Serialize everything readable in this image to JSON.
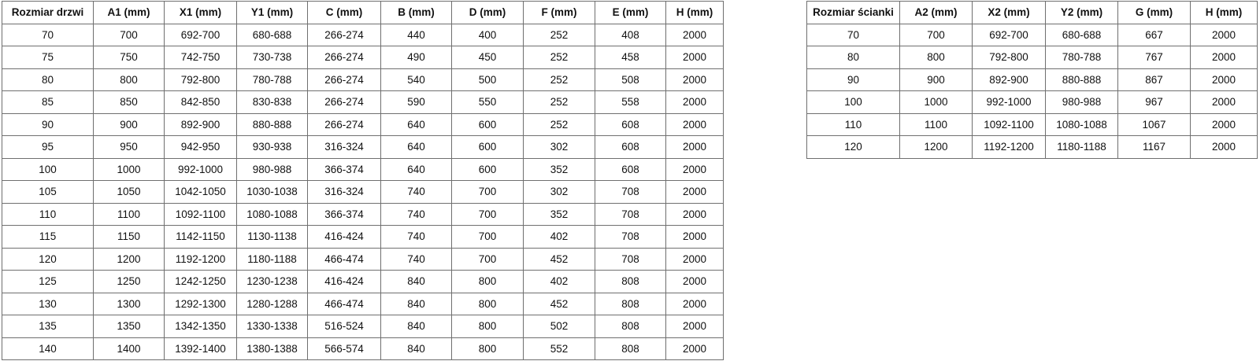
{
  "colors": {
    "table_border": "#6f6f6f",
    "text": "#111111",
    "background": "#ffffff"
  },
  "door_table": {
    "headers": [
      "Rozmiar drzwi",
      "A1 (mm)",
      "X1 (mm)",
      "Y1 (mm)",
      "C (mm)",
      "B (mm)",
      "D (mm)",
      "F (mm)",
      "E (mm)",
      "H (mm)"
    ],
    "rows": [
      [
        "70",
        "700",
        "692-700",
        "680-688",
        "266-274",
        "440",
        "400",
        "252",
        "408",
        "2000"
      ],
      [
        "75",
        "750",
        "742-750",
        "730-738",
        "266-274",
        "490",
        "450",
        "252",
        "458",
        "2000"
      ],
      [
        "80",
        "800",
        "792-800",
        "780-788",
        "266-274",
        "540",
        "500",
        "252",
        "508",
        "2000"
      ],
      [
        "85",
        "850",
        "842-850",
        "830-838",
        "266-274",
        "590",
        "550",
        "252",
        "558",
        "2000"
      ],
      [
        "90",
        "900",
        "892-900",
        "880-888",
        "266-274",
        "640",
        "600",
        "252",
        "608",
        "2000"
      ],
      [
        "95",
        "950",
        "942-950",
        "930-938",
        "316-324",
        "640",
        "600",
        "302",
        "608",
        "2000"
      ],
      [
        "100",
        "1000",
        "992-1000",
        "980-988",
        "366-374",
        "640",
        "600",
        "352",
        "608",
        "2000"
      ],
      [
        "105",
        "1050",
        "1042-1050",
        "1030-1038",
        "316-324",
        "740",
        "700",
        "302",
        "708",
        "2000"
      ],
      [
        "110",
        "1100",
        "1092-1100",
        "1080-1088",
        "366-374",
        "740",
        "700",
        "352",
        "708",
        "2000"
      ],
      [
        "115",
        "1150",
        "1142-1150",
        "1130-1138",
        "416-424",
        "740",
        "700",
        "402",
        "708",
        "2000"
      ],
      [
        "120",
        "1200",
        "1192-1200",
        "1180-1188",
        "466-474",
        "740",
        "700",
        "452",
        "708",
        "2000"
      ],
      [
        "125",
        "1250",
        "1242-1250",
        "1230-1238",
        "416-424",
        "840",
        "800",
        "402",
        "808",
        "2000"
      ],
      [
        "130",
        "1300",
        "1292-1300",
        "1280-1288",
        "466-474",
        "840",
        "800",
        "452",
        "808",
        "2000"
      ],
      [
        "135",
        "1350",
        "1342-1350",
        "1330-1338",
        "516-524",
        "840",
        "800",
        "502",
        "808",
        "2000"
      ],
      [
        "140",
        "1400",
        "1392-1400",
        "1380-1388",
        "566-574",
        "840",
        "800",
        "552",
        "808",
        "2000"
      ]
    ]
  },
  "wall_table": {
    "headers": [
      "Rozmiar ścianki",
      "A2 (mm)",
      "X2 (mm)",
      "Y2 (mm)",
      "G (mm)",
      "H (mm)"
    ],
    "rows": [
      [
        "70",
        "700",
        "692-700",
        "680-688",
        "667",
        "2000"
      ],
      [
        "80",
        "800",
        "792-800",
        "780-788",
        "767",
        "2000"
      ],
      [
        "90",
        "900",
        "892-900",
        "880-888",
        "867",
        "2000"
      ],
      [
        "100",
        "1000",
        "992-1000",
        "980-988",
        "967",
        "2000"
      ],
      [
        "110",
        "1100",
        "1092-1100",
        "1080-1088",
        "1067",
        "2000"
      ],
      [
        "120",
        "1200",
        "1192-1200",
        "1180-1188",
        "1167",
        "2000"
      ]
    ]
  }
}
